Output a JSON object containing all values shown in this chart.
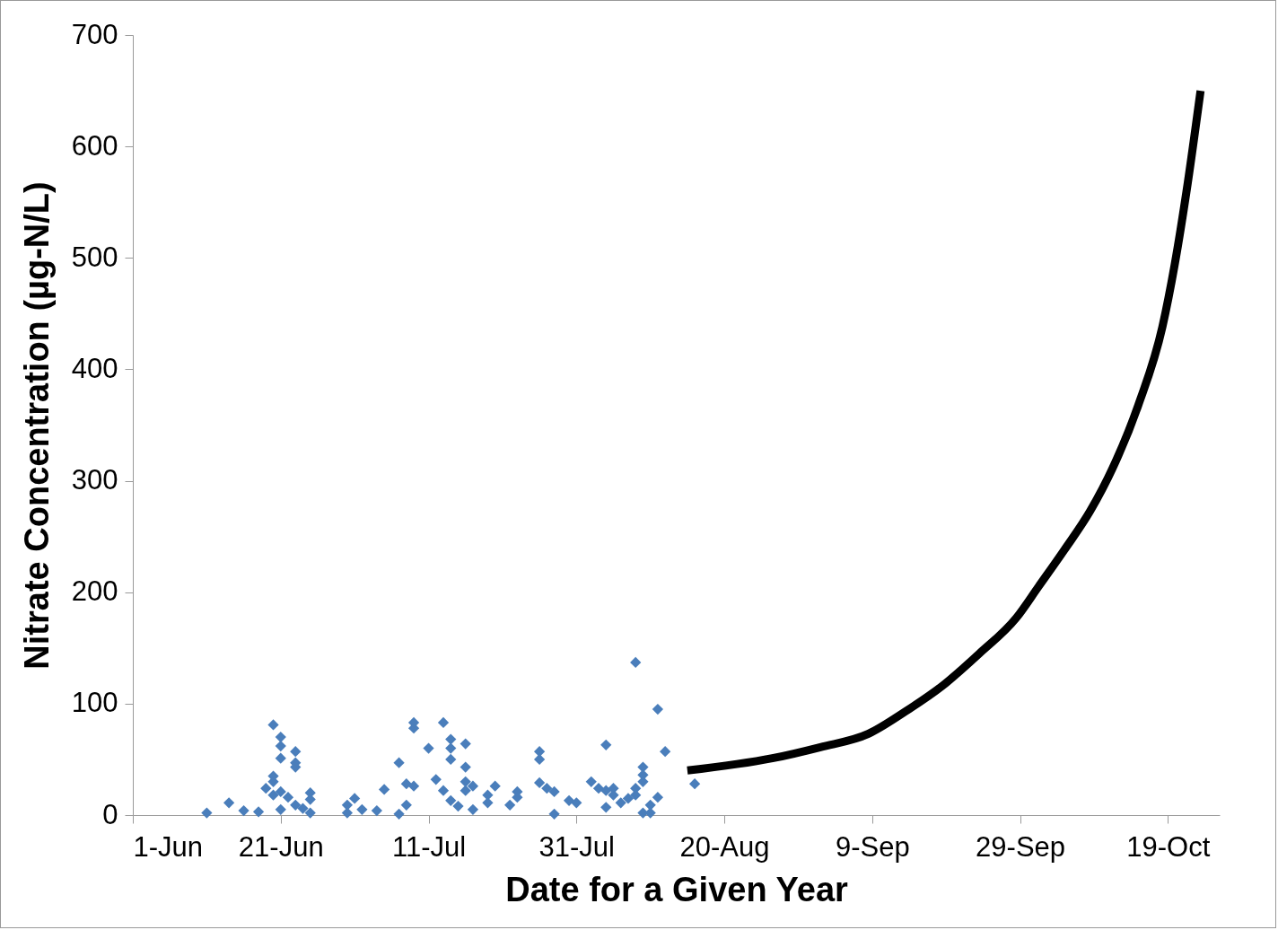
{
  "chart_data": {
    "type": "scatter",
    "xlabel": "Date for a Given Year",
    "ylabel": "Nitrate Concentration (µg-N/L)",
    "xlim": [
      "--06-01",
      "--10-26"
    ],
    "xticks": [
      {
        "value": "--06-01",
        "label": "1-Jun"
      },
      {
        "value": "--06-21",
        "label": "21-Jun"
      },
      {
        "value": "--07-11",
        "label": "11-Jul"
      },
      {
        "value": "--07-31",
        "label": "31-Jul"
      },
      {
        "value": "--08-20",
        "label": "20-Aug"
      },
      {
        "value": "--09-09",
        "label": "9-Sep"
      },
      {
        "value": "--09-29",
        "label": "29-Sep"
      },
      {
        "value": "--10-19",
        "label": "19-Oct"
      }
    ],
    "ylim": [
      0,
      700
    ],
    "yticks": [
      0,
      100,
      200,
      300,
      400,
      500,
      600,
      700
    ],
    "grid": false,
    "series": [
      {
        "type": "scatter",
        "marker": "diamond",
        "color": "#4a7ebb",
        "x": [
          "--06-11",
          "--06-14",
          "--06-16",
          "--06-18",
          "--06-19",
          "--06-20",
          "--06-21",
          "--06-21",
          "--06-21",
          "--06-20",
          "--06-20",
          "--06-20",
          "--06-21",
          "--06-21",
          "--06-22",
          "--06-23",
          "--06-23",
          "--06-23",
          "--06-23",
          "--06-24",
          "--06-25",
          "--06-25",
          "--06-25",
          "--06-30",
          "--06-30",
          "--07-01",
          "--07-02",
          "--07-04",
          "--07-05",
          "--07-07",
          "--07-07",
          "--07-08",
          "--07-08",
          "--07-09",
          "--07-09",
          "--07-09",
          "--07-11",
          "--07-12",
          "--07-13",
          "--07-14",
          "--07-14",
          "--07-14",
          "--07-13",
          "--07-14",
          "--07-15",
          "--07-16",
          "--07-16",
          "--07-16",
          "--07-16",
          "--07-17",
          "--07-17",
          "--07-19",
          "--07-19",
          "--07-20",
          "--07-22",
          "--07-23",
          "--07-23",
          "--07-26",
          "--07-26",
          "--07-26",
          "--07-27",
          "--07-28",
          "--07-28",
          "--07-30",
          "--07-31",
          "--08-02",
          "--08-03",
          "--08-04",
          "--08-04",
          "--08-04",
          "--08-05",
          "--08-05",
          "--08-06",
          "--08-07",
          "--08-08",
          "--08-08",
          "--08-08",
          "--08-09",
          "--08-09",
          "--08-09",
          "--08-09",
          "--08-11",
          "--08-10",
          "--08-10",
          "--08-11",
          "--08-12",
          "--08-16"
        ],
        "values": [
          2,
          11,
          4,
          3,
          24,
          81,
          70,
          62,
          51,
          30,
          18,
          35,
          5,
          21,
          16,
          57,
          47,
          43,
          9,
          6,
          20,
          14,
          2,
          2,
          9,
          15,
          5,
          4,
          23,
          47,
          1,
          9,
          28,
          78,
          83,
          26,
          60,
          32,
          83,
          68,
          60,
          50,
          22,
          13,
          8,
          64,
          43,
          30,
          22,
          5,
          26,
          18,
          11,
          26,
          9,
          16,
          21,
          57,
          50,
          29,
          24,
          1,
          21,
          13,
          11,
          30,
          24,
          63,
          7,
          22,
          24,
          18,
          11,
          15,
          137,
          24,
          18,
          30,
          43,
          36,
          2,
          95,
          9,
          2,
          16,
          57,
          28
        ]
      },
      {
        "type": "line",
        "marker": "none",
        "line_style": "solid",
        "color": "#000000",
        "x": [
          "--08-15",
          "--08-26T12:00",
          "--09-02",
          "--09-08T12:00",
          "--09-13T12:00",
          "--09-18T12:00",
          "--09-23T12:00",
          "--09-28T12:00",
          "--10-01T12:00",
          "--10-05",
          "--10-08T12:00",
          "--10-11T12:00",
          "--10-15",
          "--10-18T06:00",
          "--10-19T22:00",
          "--10-21T12:00",
          "--10-23T10:00"
        ],
        "values": [
          40,
          51,
          61,
          73,
          93,
          116,
          145,
          177,
          205,
          238,
          273,
          311,
          368,
          438,
          494,
          559,
          650
        ]
      }
    ]
  }
}
